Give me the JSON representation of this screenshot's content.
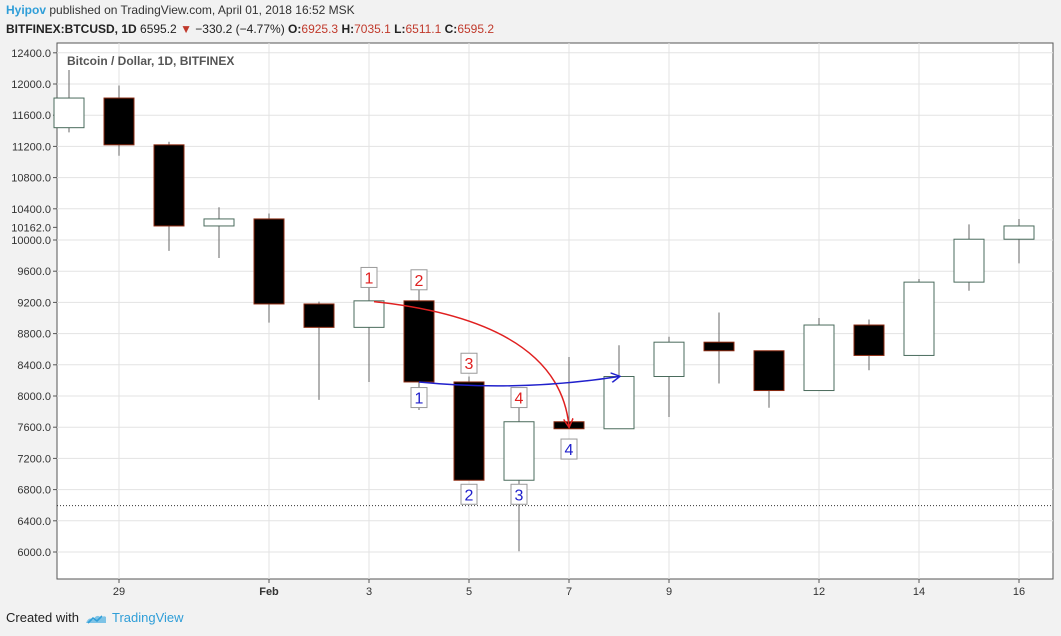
{
  "header": {
    "author": "Hyipov",
    "published_text": "published on TradingView.com, April 01, 2018 16:52 MSK"
  },
  "ohlc": {
    "symbol": "BITFINEX:BTCUSD, 1D",
    "last": "6595.2",
    "change": "−330.2 (−4.77%)",
    "o_label": "O:",
    "o": "6925.3",
    "h_label": "H:",
    "h": "7035.1",
    "l_label": "L:",
    "l": "6511.1",
    "c_label": "C:",
    "c": "6595.2"
  },
  "footer": {
    "created_with": "Created with",
    "brand": "TradingView"
  },
  "colors": {
    "up_fill": "#ffffff",
    "up_border": "#4a6b5c",
    "down_fill": "#000000",
    "down_border": "#8b2a10",
    "wick": "#666666",
    "red_annotation": "#e02020",
    "blue_annotation": "#2020cc",
    "price_line": "#333333"
  },
  "chart_data": {
    "type": "candlestick",
    "title": "Bitcoin / Dollar, 1D, BITFINEX",
    "ylim": [
      5750,
      12500
    ],
    "y_ticks": [
      6000,
      6400,
      6800,
      7200,
      7600,
      8000,
      8400,
      8800,
      9200,
      9600,
      10000,
      10400,
      10800,
      11200,
      11600,
      12000,
      12400
    ],
    "y_tick_labels": [
      "6000.0",
      "6400.0",
      "6800.0",
      "7200.0",
      "7600.0",
      "8000.0",
      "8400.0",
      "8800.0",
      "9200.0",
      "9600.0",
      "10000.0",
      "10400.0",
      "10800.0",
      "11200.0",
      "11600.0",
      "12000.0",
      "12400.0"
    ],
    "price_marker": 10162.0,
    "price_marker_label": "10162.0",
    "price_line_value": 6595.2,
    "x_labels": [
      {
        "day": 29,
        "text": "29"
      },
      {
        "day": 32,
        "text": "Feb"
      },
      {
        "day": 34,
        "text": "3"
      },
      {
        "day": 36,
        "text": "5"
      },
      {
        "day": 38,
        "text": "7"
      },
      {
        "day": 40,
        "text": "9"
      },
      {
        "day": 43,
        "text": "12"
      },
      {
        "day": 45,
        "text": "14"
      },
      {
        "day": 47,
        "text": "16"
      }
    ],
    "candles": [
      {
        "day": 28,
        "o": 11440,
        "h": 12180,
        "l": 11380,
        "c": 11820
      },
      {
        "day": 29,
        "o": 11820,
        "h": 11980,
        "l": 11080,
        "c": 11220
      },
      {
        "day": 30,
        "o": 11220,
        "h": 11260,
        "l": 9860,
        "c": 10180
      },
      {
        "day": 31,
        "o": 10180,
        "h": 10420,
        "l": 9770,
        "c": 10270
      },
      {
        "day": 32,
        "o": 10270,
        "h": 10340,
        "l": 8940,
        "c": 9180
      },
      {
        "day": 33,
        "o": 9180,
        "h": 9210,
        "l": 7950,
        "c": 8880
      },
      {
        "day": 34,
        "o": 8880,
        "h": 9390,
        "l": 8180,
        "c": 9220
      },
      {
        "day": 35,
        "o": 9220,
        "h": 9380,
        "l": 7820,
        "c": 8180
      },
      {
        "day": 36,
        "o": 8180,
        "h": 8250,
        "l": 6920,
        "c": 6920
      },
      {
        "day": 37,
        "o": 6920,
        "h": 7860,
        "l": 6010,
        "c": 7670
      },
      {
        "day": 38,
        "o": 7670,
        "h": 8500,
        "l": 7580,
        "c": 7580
      },
      {
        "day": 39,
        "o": 7580,
        "h": 8650,
        "l": 7580,
        "c": 8250
      },
      {
        "day": 40,
        "o": 8250,
        "h": 8760,
        "l": 7730,
        "c": 8690
      },
      {
        "day": 41,
        "o": 8690,
        "h": 9070,
        "l": 8160,
        "c": 8580
      },
      {
        "day": 42,
        "o": 8580,
        "h": 8580,
        "l": 7850,
        "c": 8070
      },
      {
        "day": 43,
        "o": 8070,
        "h": 9000,
        "l": 8070,
        "c": 8910
      },
      {
        "day": 44,
        "o": 8910,
        "h": 8980,
        "l": 8330,
        "c": 8520
      },
      {
        "day": 45,
        "o": 8520,
        "h": 9500,
        "l": 8520,
        "c": 9460
      },
      {
        "day": 46,
        "o": 9460,
        "h": 10200,
        "l": 9350,
        "c": 10010
      },
      {
        "day": 47,
        "o": 10010,
        "h": 10270,
        "l": 9700,
        "c": 10180
      }
    ],
    "annotations_red": [
      {
        "text": "1",
        "day": 34,
        "price": 9520
      },
      {
        "text": "2",
        "day": 35,
        "price": 9490
      },
      {
        "text": "3",
        "day": 36,
        "price": 8420
      },
      {
        "text": "4",
        "day": 37,
        "price": 7980
      }
    ],
    "annotations_blue": [
      {
        "text": "1",
        "day": 35,
        "price": 7980
      },
      {
        "text": "2",
        "day": 36,
        "price": 6740
      },
      {
        "text": "3",
        "day": 37,
        "price": 6740
      },
      {
        "text": "4",
        "day": 38,
        "price": 7320
      }
    ],
    "arrow_red": {
      "from": {
        "day": 34.1,
        "price": 9210
      },
      "to": {
        "day": 38.0,
        "price": 7610
      }
    },
    "arrow_blue": {
      "from": {
        "day": 35.0,
        "price": 8180
      },
      "to": {
        "day": 39.0,
        "price": 8250
      }
    }
  }
}
